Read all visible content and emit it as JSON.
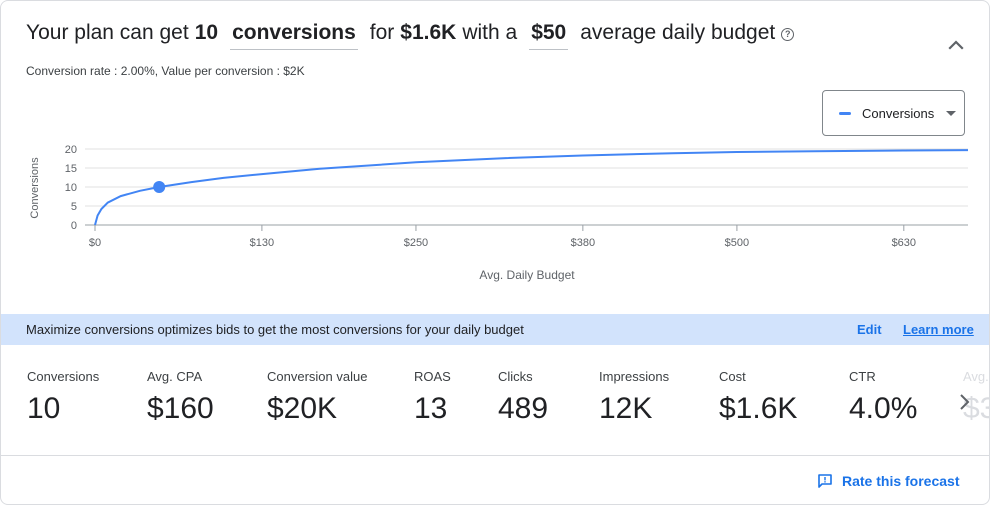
{
  "headline": {
    "part1": "Your plan can get",
    "conversions_count": "10",
    "metric_dropdown": "conversions",
    "part2": "for",
    "cost": "$1.6K",
    "part3": "with a",
    "budget_dropdown": "$50",
    "part4": "average daily budget"
  },
  "subline": "Conversion rate : 2.00%, Value per conversion : $2K",
  "legend": {
    "label": "Conversions",
    "color": "#4285f4"
  },
  "chart_data": {
    "type": "line",
    "xlabel": "Avg. Daily Budget",
    "ylabel": "Conversions",
    "x_ticks": [
      "$0",
      "$130",
      "$250",
      "$380",
      "$500",
      "$630"
    ],
    "x_tick_values": [
      0,
      130,
      250,
      380,
      500,
      630
    ],
    "y_ticks": [
      "0",
      "5",
      "10",
      "15",
      "20"
    ],
    "y_tick_values": [
      0,
      5,
      10,
      15,
      20
    ],
    "xlim": [
      0,
      680
    ],
    "ylim": [
      0,
      20
    ],
    "grid": true,
    "series": [
      {
        "name": "Conversions",
        "x": [
          0,
          2,
          5,
          10,
          20,
          35,
          50,
          75,
          100,
          130,
          175,
          250,
          320,
          380,
          450,
          500,
          560,
          630,
          680
        ],
        "values": [
          0,
          2.5,
          4.2,
          5.9,
          7.6,
          9.0,
          10,
          11.3,
          12.4,
          13.4,
          14.8,
          16.5,
          17.6,
          18.3,
          18.9,
          19.2,
          19.4,
          19.6,
          19.7
        ]
      }
    ],
    "highlight_point": {
      "x": 50,
      "y": 10
    }
  },
  "banner": {
    "message": "Maximize conversions optimizes bids to get the most conversions for your daily budget",
    "edit": "Edit",
    "learn_more": "Learn more"
  },
  "metrics": [
    {
      "label": "Conversions",
      "value": "10"
    },
    {
      "label": "Avg. CPA",
      "value": "$160"
    },
    {
      "label": "Conversion value",
      "value": "$20K"
    },
    {
      "label": "ROAS",
      "value": "13"
    },
    {
      "label": "Clicks",
      "value": "489"
    },
    {
      "label": "Impressions",
      "value": "12K"
    },
    {
      "label": "Cost",
      "value": "$1.6K"
    },
    {
      "label": "CTR",
      "value": "4.0%"
    },
    {
      "label": "Avg.",
      "value": "$3"
    }
  ],
  "footer": {
    "rate_forecast": "Rate this forecast"
  },
  "colors": {
    "accent": "#1a73e8",
    "line": "#4285f4",
    "banner": "#d2e3fc"
  }
}
